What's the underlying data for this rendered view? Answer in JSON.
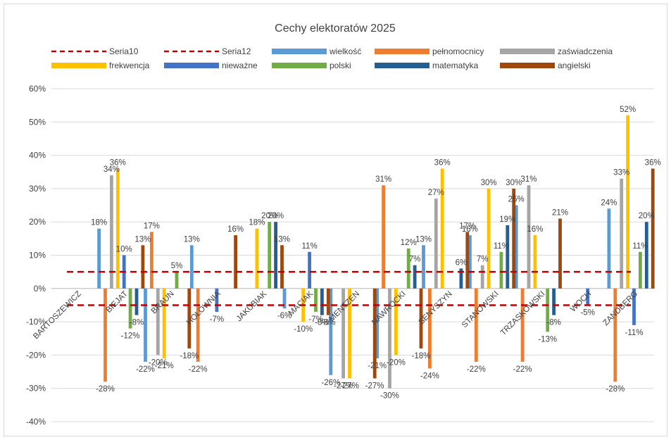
{
  "chart_data": {
    "type": "bar",
    "title": "Cechy elektoratów 2025",
    "xlabel": "",
    "ylabel": "",
    "ylim": [
      -0.4,
      0.6
    ],
    "y_ticks": [
      "-40%",
      "-30%",
      "-20%",
      "-10%",
      "0%",
      "10%",
      "20%",
      "30%",
      "40%",
      "50%",
      "60%"
    ],
    "y_tick_values": [
      -0.4,
      -0.3,
      -0.2,
      -0.1,
      0,
      0.1,
      0.2,
      0.3,
      0.4,
      0.5,
      0.6
    ],
    "grid": true,
    "legend_position": "top",
    "categories": [
      "BARTOSZEWICZ",
      "BIEJAT",
      "BRAUN",
      "HOŁOWNIA",
      "JAKUBIAK",
      "MACIAK",
      "MENTZEN",
      "NAWROCKI",
      "SENYSZYN",
      "STANOWSKI",
      "TRZASKOWSKI",
      "WOCH",
      "ZANDBERG"
    ],
    "reference_lines": [
      {
        "name": "Seria10",
        "value": 0.05,
        "color": "#c00000"
      },
      {
        "name": "Seria12",
        "value": -0.05,
        "color": "#c00000"
      }
    ],
    "series": [
      {
        "name": "wielkość",
        "color": "#5b9bd5",
        "values": [
          null,
          0.18,
          -0.22,
          0.13,
          null,
          -0.06,
          -0.26,
          -0.21,
          0.13,
          0.16,
          0.25,
          null,
          0.24
        ],
        "labels": [
          "",
          "18%",
          "-22%",
          "13%",
          "",
          "-6%",
          "-26%",
          "-21%",
          "13%",
          "16%",
          "25%",
          "",
          "24%"
        ]
      },
      {
        "name": "pełnomocnicy",
        "color": "#ed7d31",
        "values": [
          null,
          -0.28,
          0.17,
          -0.22,
          null,
          null,
          null,
          0.31,
          -0.24,
          -0.22,
          -0.22,
          null,
          -0.28
        ],
        "labels": [
          "",
          "-28%",
          "17%",
          "-22%",
          "",
          "",
          "",
          "31%",
          "-24%",
          "-22%",
          "-22%",
          "",
          "-28%"
        ]
      },
      {
        "name": "zaświadczenia",
        "color": "#a5a5a5",
        "values": [
          null,
          0.34,
          -0.2,
          null,
          null,
          null,
          -0.27,
          -0.3,
          0.27,
          0.07,
          0.31,
          null,
          0.33
        ],
        "labels": [
          "",
          "34%",
          "-20%",
          "",
          "",
          "",
          "-27%",
          "-30%",
          "27%",
          "7%",
          "31%",
          "",
          "33%"
        ]
      },
      {
        "name": "frekwencja",
        "color": "#ffc000",
        "values": [
          null,
          0.36,
          -0.21,
          null,
          0.18,
          -0.1,
          -0.27,
          -0.2,
          0.36,
          0.3,
          0.16,
          null,
          0.52
        ],
        "labels": [
          "",
          "36%",
          "-21%",
          "",
          "18%",
          "-10%",
          "-27%",
          "-20%",
          "36%",
          "30%",
          "16%",
          "",
          "52%"
        ]
      },
      {
        "name": "nieważne",
        "color": "#4472c4",
        "values": [
          null,
          0.1,
          null,
          -0.07,
          null,
          0.11,
          null,
          null,
          null,
          null,
          null,
          -0.05,
          -0.11
        ],
        "labels": [
          "",
          "10%",
          "",
          "-7%",
          "",
          "11%",
          "",
          "",
          "",
          "",
          "",
          "-5%",
          "-11%"
        ]
      },
      {
        "name": "polski",
        "color": "#70ad47",
        "values": [
          null,
          -0.12,
          0.05,
          null,
          0.2,
          -0.07,
          null,
          0.12,
          null,
          0.11,
          -0.13,
          null,
          0.11
        ],
        "labels": [
          "",
          "-12%",
          "5%",
          "",
          "20%",
          "-7%",
          "",
          "12%",
          "",
          "11%",
          "-13%",
          "",
          "11%"
        ]
      },
      {
        "name": "matematyka",
        "color": "#255e91",
        "values": [
          null,
          -0.08,
          null,
          null,
          0.2,
          -0.08,
          null,
          0.07,
          0.06,
          0.19,
          -0.08,
          null,
          0.2
        ],
        "labels": [
          "",
          "-8%",
          "",
          "",
          "20%",
          "-8%",
          "",
          "7%",
          "6%",
          "19%",
          "-8%",
          "",
          "20%"
        ]
      },
      {
        "name": "angielski",
        "color": "#9e480e",
        "values": [
          null,
          0.13,
          -0.18,
          0.16,
          0.13,
          -0.08,
          -0.27,
          -0.18,
          0.17,
          0.3,
          0.21,
          null,
          0.36
        ],
        "labels": [
          "",
          "13%",
          "-18%",
          "16%",
          "13%",
          "-8%",
          "-27%",
          "-18%",
          "17%",
          "30%",
          "21%",
          "",
          "36%"
        ]
      }
    ]
  }
}
